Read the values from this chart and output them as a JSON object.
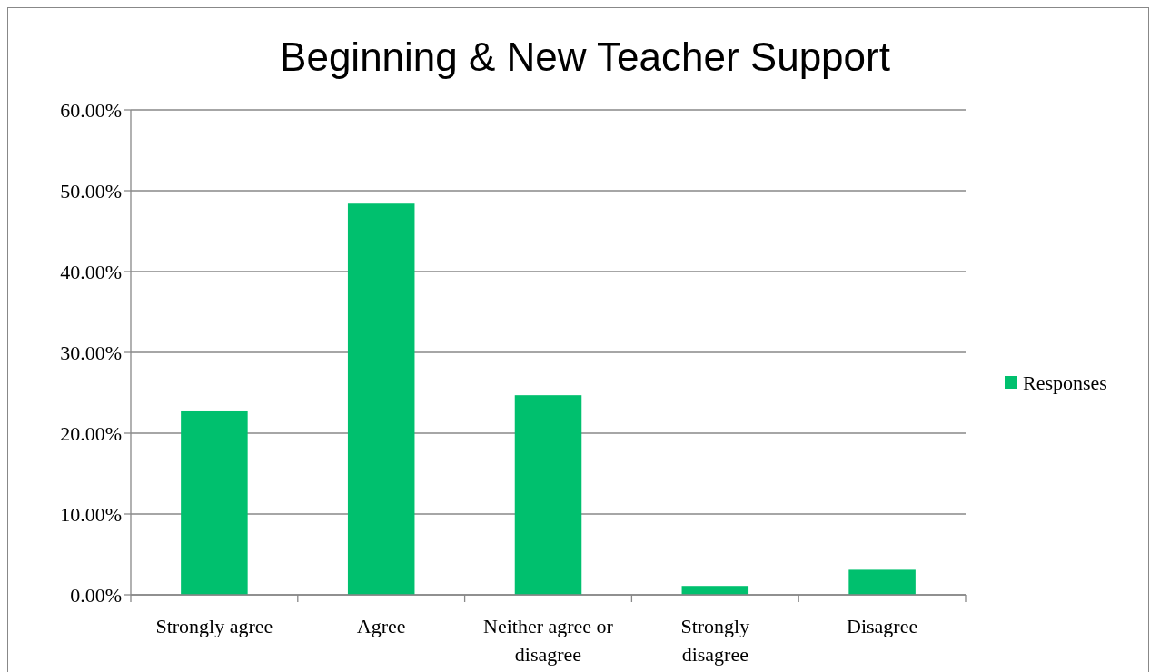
{
  "chart_data": {
    "type": "bar",
    "title": "Beginning & New Teacher Support",
    "categories": [
      "Strongly agree",
      "Agree",
      "Neither agree or disagree",
      "Strongly disagree",
      "Disagree"
    ],
    "series": [
      {
        "name": "Responses",
        "color": "#00c06e",
        "values": [
          22.7,
          48.4,
          24.7,
          1.1,
          3.1
        ]
      }
    ],
    "ylim": [
      0,
      60
    ],
    "yticks": [
      {
        "value": 0,
        "label": "0.00%"
      },
      {
        "value": 10,
        "label": "10.00%"
      },
      {
        "value": 20,
        "label": "20.00%"
      },
      {
        "value": 30,
        "label": "30.00%"
      },
      {
        "value": 40,
        "label": "40.00%"
      },
      {
        "value": 50,
        "label": "50.00%"
      },
      {
        "value": 60,
        "label": "60.00%"
      }
    ],
    "grid": "y",
    "legend": "right"
  }
}
